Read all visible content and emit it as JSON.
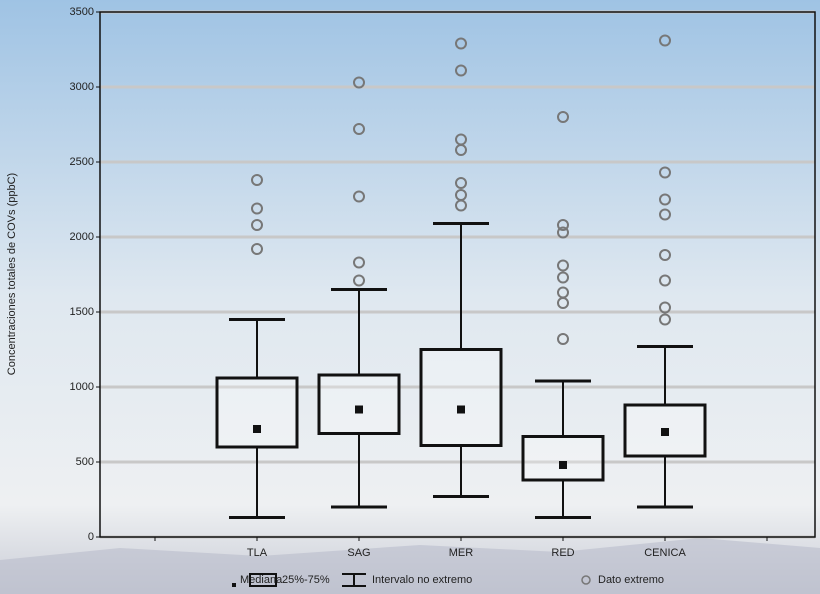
{
  "chart_data": {
    "type": "boxplot",
    "y_label": "Concentraciones totales de COVs (ppbC)",
    "categories": [
      "TLA",
      "SAG",
      "MER",
      "RED",
      "CENICA"
    ],
    "boxes": [
      {
        "median": 720,
        "q1": 600,
        "q3": 1060,
        "whisker_low": 130,
        "whisker_high": 1450,
        "outliers": [
          2380,
          2190,
          2080,
          1920
        ]
      },
      {
        "median": 850,
        "q1": 690,
        "q3": 1080,
        "whisker_low": 200,
        "whisker_high": 1650,
        "outliers": [
          3030,
          2720,
          2270,
          1830,
          1710
        ]
      },
      {
        "median": 850,
        "q1": 610,
        "q3": 1250,
        "whisker_low": 270,
        "whisker_high": 2090,
        "outliers": [
          3290,
          3110,
          2650,
          2580,
          2360,
          2280,
          2210
        ]
      },
      {
        "median": 480,
        "q1": 380,
        "q3": 670,
        "whisker_low": 130,
        "whisker_high": 1040,
        "outliers": [
          2800,
          2080,
          2030,
          1810,
          1730,
          1630,
          1560,
          1320
        ]
      },
      {
        "median": 700,
        "q1": 540,
        "q3": 880,
        "whisker_low": 200,
        "whisker_high": 1270,
        "outliers": [
          3310,
          2430,
          2250,
          2150,
          1880,
          1710,
          1530,
          1450
        ]
      }
    ],
    "ylim": [
      0,
      3500
    ],
    "yticks": [
      0,
      500,
      1000,
      1500,
      2000,
      2500,
      3000,
      3500
    ],
    "grid": true,
    "legend": [
      "Mediana",
      "25%-75%",
      "Intervalo no extremo",
      "Dato extremo"
    ]
  }
}
